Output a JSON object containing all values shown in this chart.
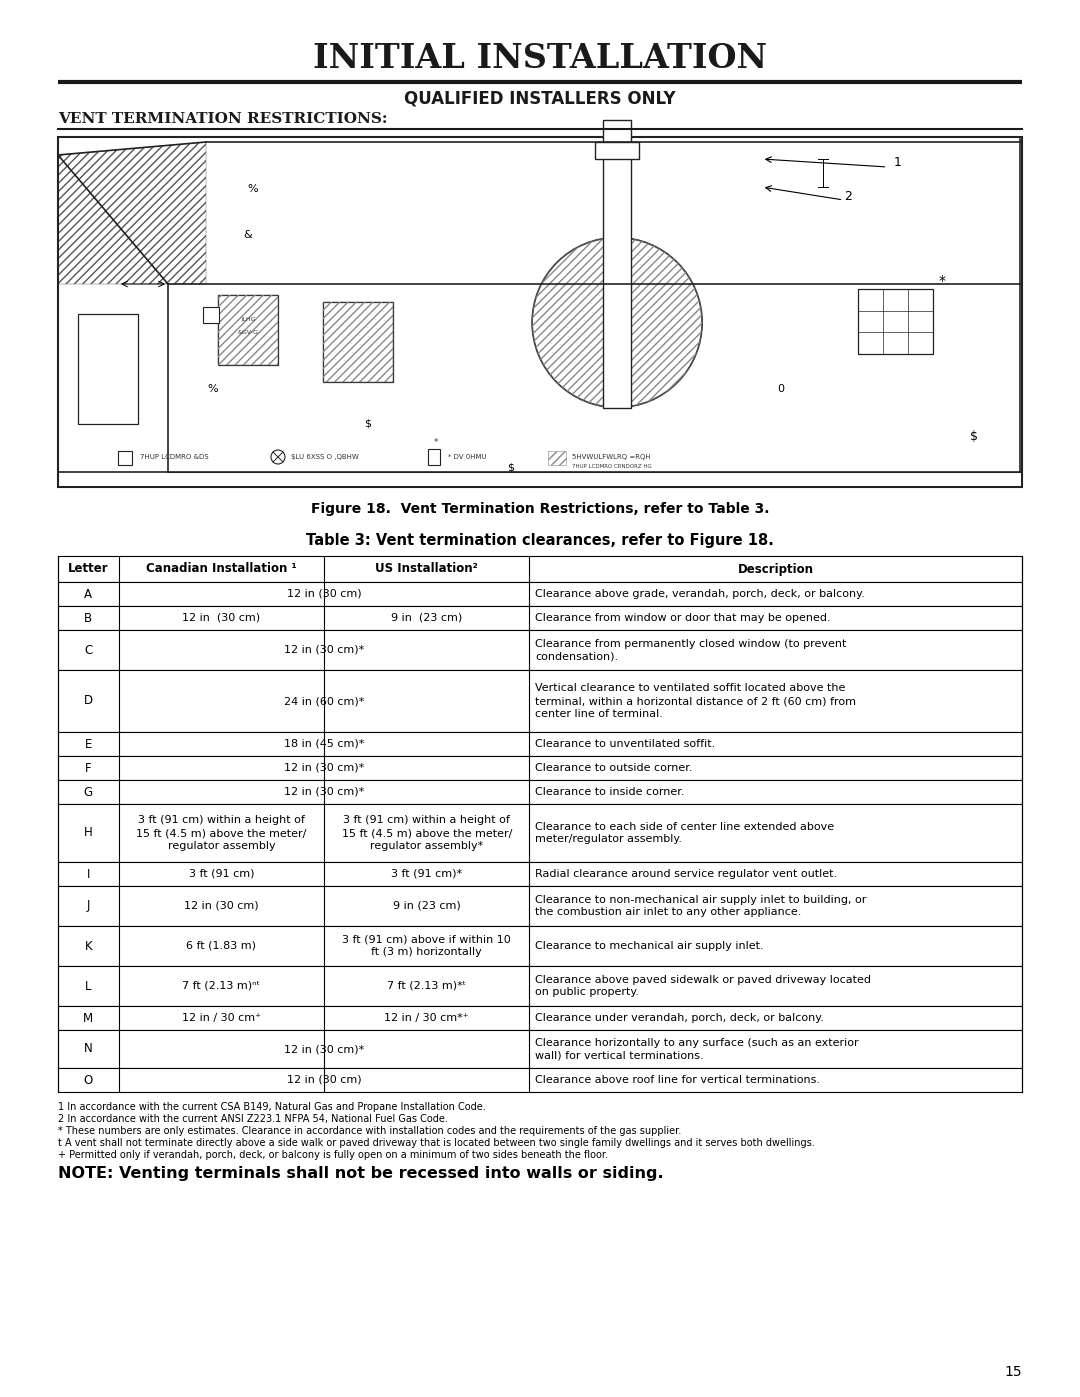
{
  "title_part1": "I",
  "title_part2": "NITIAL ",
  "title_part3": "I",
  "title_part4": "NSTALLATION",
  "title_display": "INITIAL INSTALLATION",
  "subtitle": "QUALIFIED INSTALLERS ONLY",
  "section_title": "VENT TERMINATION RESTRICTIONS:",
  "figure_caption": "Figure 18.  Vent Termination Restrictions, refer to Table 3.",
  "table_title": "Table 3: Vent termination clearances, refer to Figure 18.",
  "headers": [
    "Letter",
    "Canadian Installation ¹",
    "US Installation²",
    "Description"
  ],
  "rows": [
    [
      "A",
      "12 in (30 cm)",
      "",
      "Clearance above grade, verandah, porch, deck, or balcony."
    ],
    [
      "B",
      "12 in  (30 cm)",
      "9 in  (23 cm)",
      "Clearance from window or door that may be opened."
    ],
    [
      "C",
      "12 in (30 cm)*",
      "",
      "Clearance from permanently closed window (to prevent\ncondensation)."
    ],
    [
      "D",
      "24 in (60 cm)*",
      "",
      "Vertical clearance to ventilated soffit located above the\nterminal, within a horizontal distance of 2 ft (60 cm) from\ncenter line of terminal."
    ],
    [
      "E",
      "18 in (45 cm)*",
      "",
      "Clearance to unventilated soffit."
    ],
    [
      "F",
      "12 in (30 cm)*",
      "",
      "Clearance to outside corner."
    ],
    [
      "G",
      "12 in (30 cm)*",
      "",
      "Clearance to inside corner."
    ],
    [
      "H",
      "3 ft (91 cm) within a height of\n15 ft (4.5 m) above the meter/\nregulator assembly",
      "3 ft (91 cm) within a height of\n15 ft (4.5 m) above the meter/\nregulator assembly*",
      "Clearance to each side of center line extended above\nmeter/regulator assembly."
    ],
    [
      "I",
      "3 ft (91 cm)",
      "3 ft (91 cm)*",
      "Radial clearance around service regulator vent outlet."
    ],
    [
      "J",
      "12 in (30 cm)",
      "9 in (23 cm)",
      "Clearance to non-mechanical air supply inlet to building, or\nthe combustion air inlet to any other appliance."
    ],
    [
      "K",
      "6 ft (1.83 m)",
      "3 ft (91 cm) above if within 10\nft (3 m) horizontally",
      "Clearance to mechanical air supply inlet."
    ],
    [
      "L",
      "7 ft (2.13 m)ⁿᵗ",
      "7 ft (2.13 m)*ᵗ",
      "Clearance above paved sidewalk or paved driveway located\non public property."
    ],
    [
      "M",
      "12 in / 30 cm⁺",
      "12 in / 30 cm*⁺",
      "Clearance under verandah, porch, deck, or balcony."
    ],
    [
      "N",
      "12 in (30 cm)*",
      "",
      "Clearance horizontally to any surface (such as an exterior\nwall) for vertical terminations."
    ],
    [
      "O",
      "12 in (30 cm)",
      "",
      "Clearance above roof line for vertical terminations."
    ]
  ],
  "footnotes": [
    "1 In accordance with the current CSA B149, Natural Gas and Propane Installation Code.",
    "2 In accordance with the current ANSI Z223.1 NFPA 54, National Fuel Gas Code.",
    "* These numbers are only estimates. Clearance in accordance with installation codes and the requirements of the gas supplier.",
    "t A vent shall not terminate directly above a side walk or paved driveway that is located between two single family dwellings and it serves both dwellings.",
    "+ Permitted only if verandah, porch, deck, or balcony is fully open on a minimum of two sides beneath the floor."
  ],
  "note": "NOTE: Venting terminals shall not be recessed into walls or siding.",
  "page_number": "15",
  "bg_color": "#ffffff",
  "text_color": "#000000"
}
